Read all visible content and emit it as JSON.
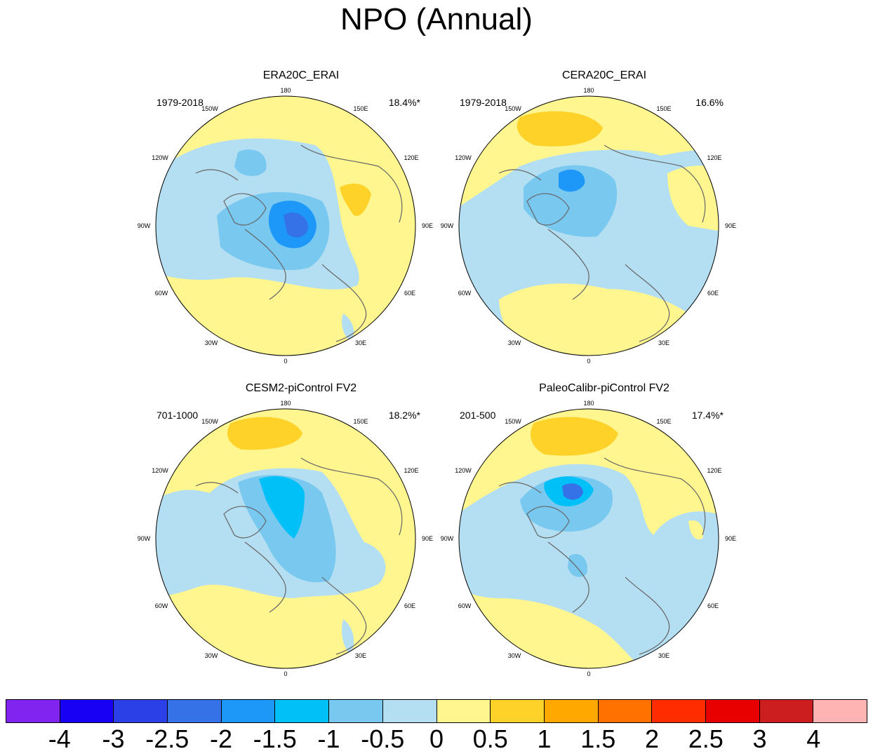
{
  "figure": {
    "title": "NPO (Annual)"
  },
  "panels": [
    {
      "title": "ERA20C_ERAI",
      "period": "1979-2018",
      "variance": "18.4%*"
    },
    {
      "title": "CERA20C_ERAI",
      "period": "1979-2018",
      "variance": "16.6%"
    },
    {
      "title": "CESM2-piControl FV2",
      "period": "701-1000",
      "variance": "18.2%*"
    },
    {
      "title": "PaleoCalibr-piControl FV2",
      "period": "201-500",
      "variance": "17.4%*"
    }
  ],
  "longitude_labels": [
    "180",
    "150E",
    "120E",
    "90E",
    "60E",
    "30E",
    "0",
    "30W",
    "60W",
    "90W",
    "120W",
    "150W"
  ],
  "colorbar": {
    "colors": [
      "#8224f0",
      "#1800f5",
      "#2c40e8",
      "#3572e8",
      "#1e98f8",
      "#00c0f8",
      "#78c8f0",
      "#b4def2",
      "#fff690",
      "#ffd22a",
      "#ffa800",
      "#ff7200",
      "#ff2c00",
      "#e80000",
      "#cc1e1e",
      "#ffb4b4"
    ],
    "labels": [
      "-4",
      "-3",
      "-2.5",
      "-2",
      "-1.5",
      "-1",
      "-0.5",
      "0",
      "0.5",
      "1",
      "1.5",
      "2",
      "2.5",
      "3",
      "4"
    ]
  }
}
